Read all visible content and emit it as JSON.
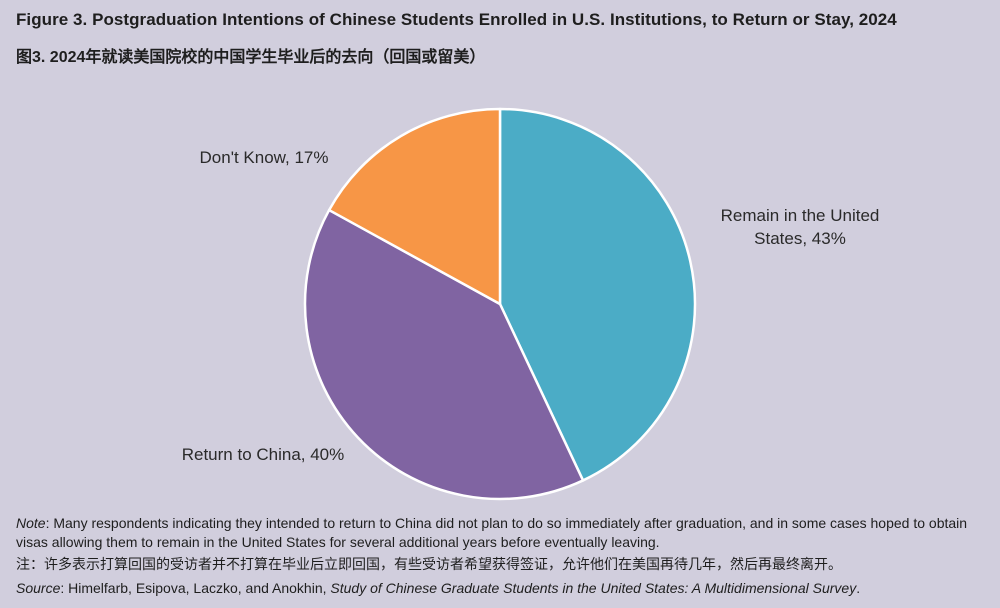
{
  "header": {
    "title_en": "Figure 3. Postgraduation Intentions of Chinese Students Enrolled in U.S. Institutions, to Return or Stay, 2024",
    "title_zh": "图3. 2024年就读美国院校的中国学生毕业后的去向（回国或留美）"
  },
  "chart_data": {
    "type": "pie",
    "title": "Figure 3. Postgraduation Intentions of Chinese Students Enrolled in U.S. Institutions, to Return or Stay, 2024",
    "slices": [
      {
        "label_lines": [
          "Remain in the United",
          "States, 43%"
        ],
        "name": "Remain in the United States",
        "value": 43,
        "color": "#4bacc6"
      },
      {
        "label_lines": [
          "Return to China, 40%"
        ],
        "name": "Return to China",
        "value": 40,
        "color": "#8064a2"
      },
      {
        "label_lines": [
          "Don't Know, 17%"
        ],
        "name": "Don't Know",
        "value": 17,
        "color": "#f79646"
      }
    ],
    "start": "12 o'clock",
    "direction": "clockwise",
    "slice_border": "#ffffff"
  },
  "footnotes": {
    "note_label": "Note",
    "note_text": ": Many respondents indicating they intended to return to China did not plan to do so immediately after graduation, and in some cases hoped to obtain visas allowing them to remain in the United States for several additional years before eventually leaving.",
    "note_zh": "注：许多表示打算回国的受访者并不打算在毕业后立即回国，有些受访者希望获得签证，允许他们在美国再待几年，然后再最终离开。",
    "source_label": "Source",
    "source_prefix": ": Himelfarb, Esipova, Laczko, and Anokhin, ",
    "source_title": "Study of Chinese Graduate Students in the United States: A Multidimensional Survey",
    "source_end": "."
  }
}
